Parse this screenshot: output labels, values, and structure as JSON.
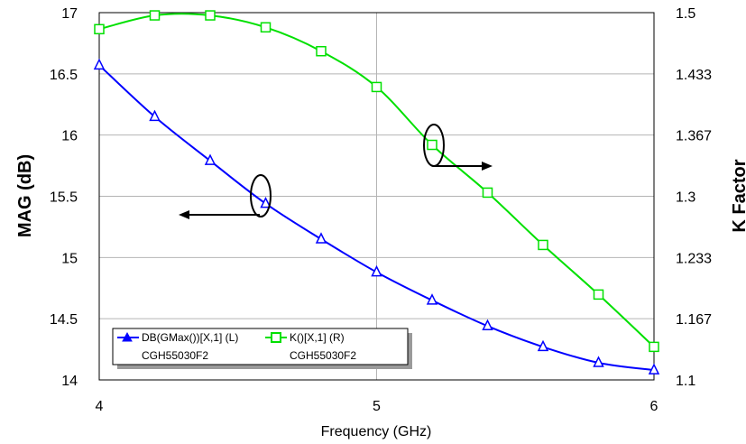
{
  "chart_data": {
    "type": "line",
    "title": "",
    "xlabel": "Frequency (GHz)",
    "ylabel_left": "MAG (dB)",
    "ylabel_right": "K Factor",
    "xlim": [
      4,
      6
    ],
    "ylim_left": [
      14,
      17
    ],
    "ylim_right": [
      1.1,
      1.5
    ],
    "x_ticks": [
      "4",
      "5",
      "6"
    ],
    "y_left_ticks": [
      "17",
      "16.5",
      "16",
      "15.5",
      "15",
      "14.5",
      "14"
    ],
    "y_right_ticks": [
      "1.5",
      "1.433",
      "1.367",
      "1.3",
      "1.233",
      "1.167",
      "1.1"
    ],
    "grid": true,
    "legend_position": "bottom-left",
    "series": [
      {
        "name": "DB(GMax())[X,1] (L)",
        "sub": "CGH55030F2",
        "axis": "left",
        "color": "#0000FF",
        "marker": "triangle",
        "x": [
          4.0,
          4.2,
          4.4,
          4.6,
          4.8,
          5.0,
          5.2,
          5.4,
          5.6,
          5.8,
          6.0
        ],
        "values": [
          16.57,
          16.15,
          15.79,
          15.44,
          15.15,
          14.88,
          14.65,
          14.44,
          14.27,
          14.14,
          14.08
        ]
      },
      {
        "name": "K()[X,1] (R)",
        "sub": "CGH55030F2",
        "axis": "right",
        "color": "#00E000",
        "marker": "square",
        "x": [
          4.0,
          4.2,
          4.4,
          4.6,
          4.8,
          5.0,
          5.2,
          5.4,
          5.6,
          5.8,
          6.0
        ],
        "values": [
          1.482,
          1.497,
          1.497,
          1.484,
          1.458,
          1.419,
          1.356,
          1.304,
          1.247,
          1.193,
          1.136
        ]
      }
    ]
  }
}
